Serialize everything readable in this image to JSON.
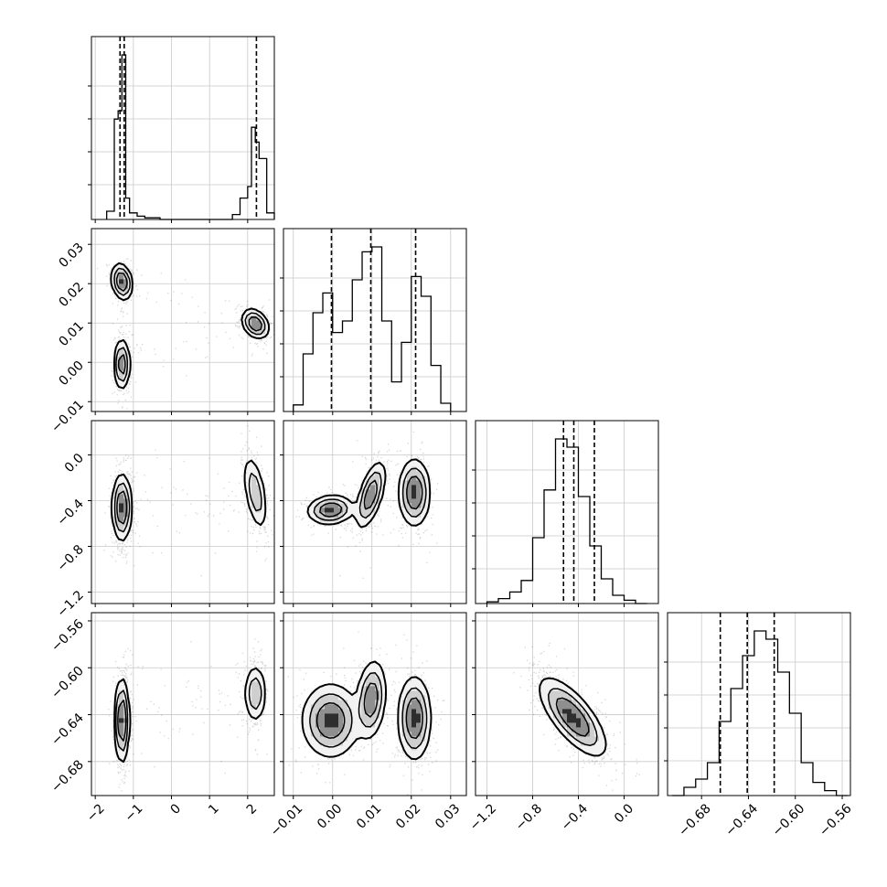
{
  "chart_data": {
    "type": "corner",
    "title": "",
    "grid": true,
    "parameters": [
      {
        "index": 0,
        "range": [
          -2.1,
          2.7
        ],
        "ticks": [
          -2,
          -1,
          0,
          1,
          2
        ],
        "tick_labels": [
          "−2",
          "−1",
          "0",
          "1",
          "2"
        ],
        "quantiles": [
          -1.35,
          -1.24,
          2.23
        ]
      },
      {
        "index": 1,
        "range": [
          -0.0125,
          0.034
        ],
        "ticks": [
          -0.01,
          0.0,
          0.01,
          0.02,
          0.03
        ],
        "tick_labels": [
          "−0.01",
          "0.00",
          "0.01",
          "0.02",
          "0.03"
        ],
        "quantiles": [
          -0.0003,
          0.0097,
          0.0211
        ]
      },
      {
        "index": 2,
        "range": [
          -1.3,
          0.3
        ],
        "ticks": [
          -1.2,
          -0.8,
          -0.4,
          0.0
        ],
        "tick_labels": [
          "−1.2",
          "−0.8",
          "−0.4",
          "0.0"
        ],
        "quantiles": [
          -0.53,
          -0.44,
          -0.26
        ]
      },
      {
        "index": 3,
        "range": [
          -0.709,
          -0.553
        ],
        "ticks": [
          -0.68,
          -0.64,
          -0.6,
          -0.56
        ],
        "tick_labels": [
          "−0.68",
          "−0.64",
          "−0.60",
          "−0.56"
        ],
        "quantiles": [
          -0.664,
          -0.641,
          -0.618
        ]
      }
    ],
    "histograms": [
      {
        "param": 0,
        "bin_edges": [
          -1.7,
          -1.5,
          -1.4,
          -1.3,
          -1.2,
          -1.1,
          -0.9,
          -0.7,
          -0.3,
          1.6,
          1.8,
          2.0,
          2.1,
          2.2,
          2.3,
          2.5,
          2.7
        ],
        "counts": [
          0.05,
          0.61,
          0.66,
          1.0,
          0.13,
          0.04,
          0.02,
          0.01,
          0.0,
          0.03,
          0.13,
          0.2,
          0.56,
          0.47,
          0.37,
          0.04
        ]
      },
      {
        "param": 1,
        "bin_edges": [
          -0.01,
          -0.0075,
          -0.005,
          -0.0025,
          0.0,
          0.0025,
          0.005,
          0.0075,
          0.01,
          0.0125,
          0.015,
          0.0175,
          0.02,
          0.0225,
          0.025,
          0.0275,
          0.03
        ],
        "counts": [
          0.04,
          0.35,
          0.6,
          0.72,
          0.48,
          0.55,
          0.8,
          0.97,
          1.0,
          0.55,
          0.18,
          0.42,
          0.82,
          0.7,
          0.28,
          0.05
        ]
      },
      {
        "param": 2,
        "bin_edges": [
          -1.2,
          -1.1,
          -1.0,
          -0.9,
          -0.8,
          -0.7,
          -0.6,
          -0.5,
          -0.4,
          -0.3,
          -0.2,
          -0.1,
          0.0,
          0.1,
          0.2
        ],
        "counts": [
          0.01,
          0.03,
          0.07,
          0.14,
          0.4,
          0.69,
          1.0,
          0.95,
          0.65,
          0.35,
          0.15,
          0.05,
          0.02,
          0.0
        ]
      },
      {
        "param": 3,
        "bin_edges": [
          -0.705,
          -0.695,
          -0.685,
          -0.675,
          -0.665,
          -0.655,
          -0.645,
          -0.635,
          -0.625,
          -0.615,
          -0.605,
          -0.595,
          -0.585,
          -0.575,
          -0.565,
          -0.555
        ],
        "counts": [
          0.0,
          0.05,
          0.1,
          0.2,
          0.45,
          0.65,
          0.85,
          1.0,
          0.95,
          0.75,
          0.5,
          0.2,
          0.08,
          0.03,
          0.0
        ]
      }
    ],
    "pair_modes": [
      {
        "x": 0,
        "y": 1,
        "modes": [
          {
            "mx": -1.3,
            "my": 0.0205,
            "sx": 0.13,
            "sy": 0.0022,
            "rho": -0.2,
            "w": 0.36
          },
          {
            "mx": -1.3,
            "my": -0.0005,
            "sx": 0.1,
            "sy": 0.0031,
            "rho": 0.0,
            "w": 0.3
          },
          {
            "mx": 2.2,
            "my": 0.0098,
            "sx": 0.17,
            "sy": 0.0018,
            "rho": -0.3,
            "w": 0.34
          }
        ]
      },
      {
        "x": 0,
        "y": 2,
        "modes": [
          {
            "mx": -1.3,
            "my": -0.46,
            "sx": 0.12,
            "sy": 0.14,
            "rho": 0.0,
            "w": 0.65
          },
          {
            "mx": 2.2,
            "my": -0.33,
            "sx": 0.15,
            "sy": 0.16,
            "rho": -0.5,
            "w": 0.35
          }
        ]
      },
      {
        "x": 0,
        "y": 3,
        "modes": [
          {
            "mx": -1.3,
            "my": -0.645,
            "sx": 0.09,
            "sy": 0.017,
            "rho": 0.0,
            "w": 0.65
          },
          {
            "mx": 2.2,
            "my": -0.622,
            "sx": 0.14,
            "sy": 0.012,
            "rho": 0.0,
            "w": 0.35
          }
        ]
      },
      {
        "x": 1,
        "y": 2,
        "modes": [
          {
            "mx": -0.0005,
            "my": -0.48,
            "sx": 0.0028,
            "sy": 0.06,
            "rho": 0.1,
            "w": 0.34
          },
          {
            "mx": 0.0097,
            "my": -0.35,
            "sx": 0.0018,
            "sy": 0.14,
            "rho": 0.6,
            "w": 0.31
          },
          {
            "mx": 0.0208,
            "my": -0.33,
            "sx": 0.0019,
            "sy": 0.14,
            "rho": 0.0,
            "w": 0.35
          }
        ]
      },
      {
        "x": 1,
        "y": 3,
        "modes": [
          {
            "mx": -0.0005,
            "my": -0.645,
            "sx": 0.0035,
            "sy": 0.015,
            "rho": 0.0,
            "w": 0.34
          },
          {
            "mx": 0.0098,
            "my": -0.627,
            "sx": 0.0018,
            "sy": 0.016,
            "rho": 0.2,
            "w": 0.31
          },
          {
            "mx": 0.0208,
            "my": -0.643,
            "sx": 0.002,
            "sy": 0.017,
            "rho": 0.0,
            "w": 0.35
          }
        ]
      },
      {
        "x": 2,
        "y": 3,
        "modes": [
          {
            "mx": -0.45,
            "my": -0.642,
            "sx": 0.14,
            "sy": 0.016,
            "rho": -0.72,
            "w": 1.0
          }
        ]
      }
    ]
  }
}
